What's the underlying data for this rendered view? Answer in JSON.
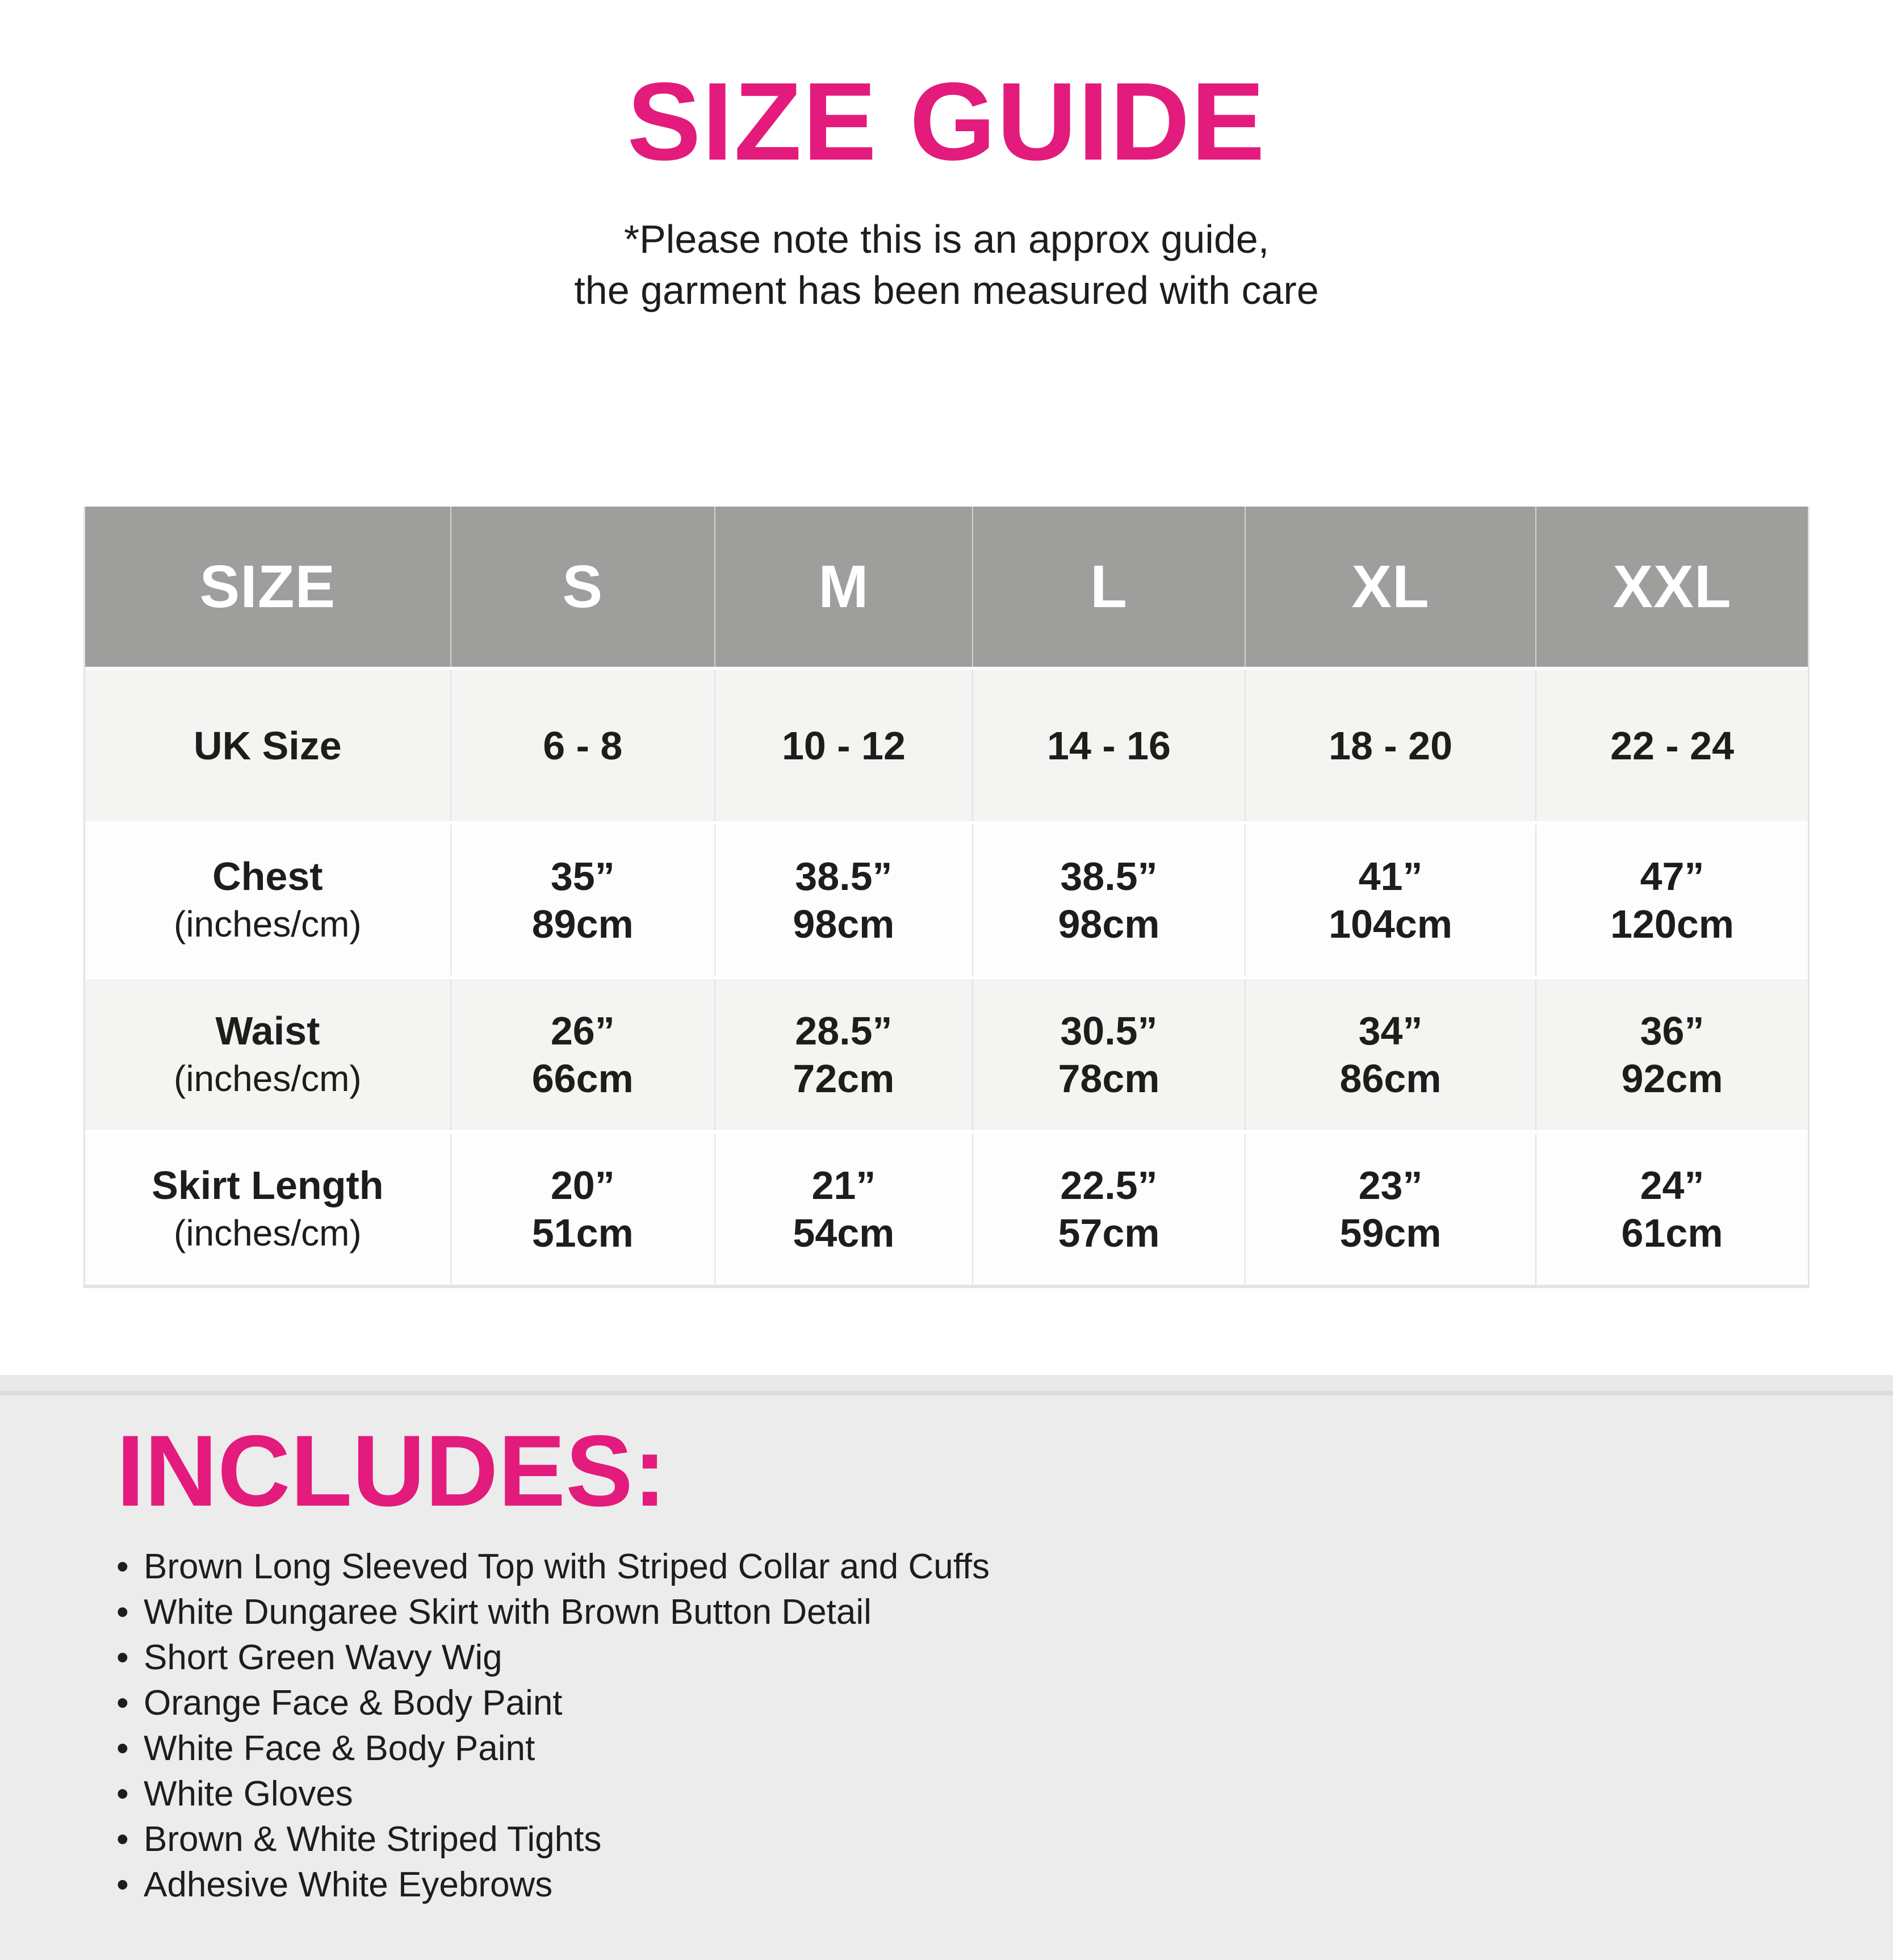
{
  "title": "SIZE GUIDE",
  "subtitle": {
    "line1": "*Please note this is an approx guide,",
    "line2": "the garment has been measured with care"
  },
  "colors": {
    "accent_pink": "#e31b7d",
    "header_gray": "#9e9e9c",
    "row_alt_gray": "#f4f4f3",
    "section_gray": "#ececec",
    "text_dark": "#1d1d1b"
  },
  "table": {
    "columns": [
      "SIZE",
      "S",
      "M",
      "L",
      "XL",
      "XXL"
    ],
    "uk_row": {
      "label": "UK Size",
      "values": [
        "6 - 8",
        "10 - 12",
        "14 - 16",
        "18 - 20",
        "22 - 24"
      ]
    },
    "measure_rows": [
      {
        "label": "Chest",
        "sublabel": "(inches/cm)",
        "values": [
          {
            "in": "35”",
            "cm": "89cm"
          },
          {
            "in": "38.5”",
            "cm": "98cm"
          },
          {
            "in": "38.5”",
            "cm": "98cm"
          },
          {
            "in": "41”",
            "cm": "104cm"
          },
          {
            "in": "47”",
            "cm": "120cm"
          }
        ]
      },
      {
        "label": "Waist",
        "sublabel": "(inches/cm)",
        "values": [
          {
            "in": "26”",
            "cm": "66cm"
          },
          {
            "in": "28.5”",
            "cm": "72cm"
          },
          {
            "in": "30.5”",
            "cm": "78cm"
          },
          {
            "in": "34”",
            "cm": "86cm"
          },
          {
            "in": "36”",
            "cm": "92cm"
          }
        ]
      },
      {
        "label": "Skirt Length",
        "sublabel": "(inches/cm)",
        "values": [
          {
            "in": "20”",
            "cm": "51cm"
          },
          {
            "in": "21”",
            "cm": "54cm"
          },
          {
            "in": "22.5”",
            "cm": "57cm"
          },
          {
            "in": "23”",
            "cm": "59cm"
          },
          {
            "in": "24”",
            "cm": "61cm"
          }
        ]
      }
    ]
  },
  "includes": {
    "heading": "INCLUDES:",
    "bullet": "•",
    "items": [
      "Brown Long Sleeved Top with Striped Collar and Cuffs",
      "White Dungaree Skirt with Brown Button Detail",
      "Short Green Wavy Wig",
      "Orange Face & Body Paint",
      "White Face & Body Paint",
      "White Gloves",
      "Brown & White Striped Tights",
      "Adhesive White Eyebrows"
    ]
  }
}
